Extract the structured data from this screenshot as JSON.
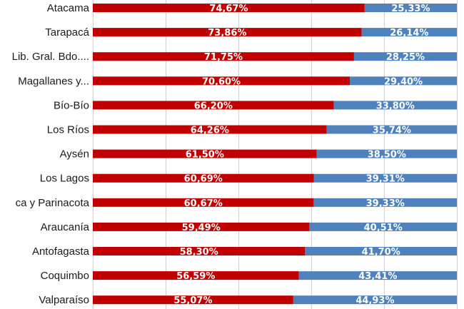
{
  "chart_data": {
    "type": "bar",
    "orientation": "horizontal",
    "stacked": true,
    "percent_stacked": true,
    "categories": [
      "Atacama",
      "Tarapacá",
      "Lib. Gral. Bdo....",
      "Magallanes y...",
      "Bío-Bío",
      "Los Ríos",
      "Aysén",
      "Los Lagos",
      "ca y Parinacota",
      "Araucanía",
      "Antofagasta",
      "Coquimbo",
      "Valparaíso"
    ],
    "series": [
      {
        "color": "#c00000",
        "values": [
          74.67,
          73.86,
          71.75,
          70.6,
          66.2,
          64.26,
          61.5,
          60.69,
          60.67,
          59.49,
          58.3,
          56.59,
          55.07
        ],
        "labels": [
          "74,67%",
          "73,86%",
          "71,75%",
          "70,60%",
          "66,20%",
          "64,26%",
          "61,50%",
          "60,69%",
          "60,67%",
          "59,49%",
          "58,30%",
          "56,59%",
          "55,07%"
        ]
      },
      {
        "color": "#4f81bd",
        "values": [
          25.33,
          26.14,
          28.25,
          29.4,
          33.8,
          35.74,
          38.5,
          39.31,
          39.33,
          40.51,
          41.7,
          43.41,
          44.93
        ],
        "labels": [
          "25,33%",
          "26,14%",
          "28,25%",
          "29,40%",
          "33,80%",
          "35,74%",
          "38,50%",
          "39,31%",
          "39,33%",
          "40,51%",
          "41,70%",
          "43,41%",
          "44,93%"
        ]
      }
    ],
    "xlim": [
      0,
      100
    ],
    "grid": true,
    "title": "",
    "xlabel": "",
    "ylabel": ""
  }
}
